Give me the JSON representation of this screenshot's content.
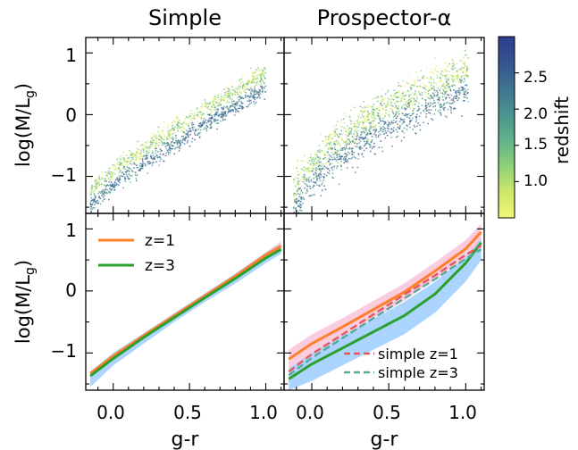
{
  "chart_data": [
    {
      "type": "scatter",
      "panel": "top-left",
      "title": "Simple",
      "xlabel": "",
      "ylabel": "log(M/L_g)",
      "xlim": [
        -0.18,
        1.12
      ],
      "ylim": [
        -1.6,
        1.25
      ],
      "yticks": [
        1,
        0,
        -1
      ],
      "color_by": "redshift",
      "density_ridge": {
        "x": [
          -0.15,
          0.0,
          0.2,
          0.4,
          0.6,
          0.8,
          0.95
        ],
        "y": [
          -1.3,
          -0.95,
          -0.62,
          -0.3,
          0.02,
          0.32,
          0.55
        ]
      }
    },
    {
      "type": "scatter",
      "panel": "top-right",
      "title": "Prospector-α",
      "xlabel": "",
      "ylabel": "",
      "xlim": [
        -0.18,
        1.12
      ],
      "ylim": [
        -1.6,
        1.25
      ],
      "color_by": "redshift",
      "density_ridge": {
        "x": [
          -0.1,
          0.1,
          0.3,
          0.5,
          0.7,
          0.9
        ],
        "y": [
          -1.15,
          -0.6,
          -0.25,
          0.05,
          0.3,
          0.55
        ]
      }
    },
    {
      "type": "line",
      "panel": "bottom-left",
      "xlabel": "g-r",
      "ylabel": "log(M/L_g)",
      "xlim": [
        -0.18,
        1.12
      ],
      "ylim": [
        -1.6,
        1.25
      ],
      "xticks": [
        0.0,
        0.5,
        1.0
      ],
      "xtick_labels": [
        "0.0",
        "0.5",
        "1.0"
      ],
      "yticks": [
        1,
        0,
        -1
      ],
      "legend": "upper-left",
      "x": [
        -0.15,
        0.0,
        0.2,
        0.4,
        0.6,
        0.8,
        1.0,
        1.1
      ],
      "series": [
        {
          "name": "z=1",
          "color": "#ff7f2a",
          "values": [
            -1.33,
            -1.05,
            -0.72,
            -0.4,
            -0.08,
            0.24,
            0.58,
            0.72
          ]
        },
        {
          "name": "z=3",
          "color": "#2ca02c",
          "values": [
            -1.37,
            -1.09,
            -0.75,
            -0.43,
            -0.11,
            0.2,
            0.53,
            0.67
          ]
        }
      ],
      "bands": [
        {
          "color": "#66b3ff",
          "lower": [
            -1.55,
            -1.2,
            -0.85,
            -0.5,
            -0.18,
            0.12,
            0.45,
            0.6
          ],
          "upper": [
            -1.3,
            -1.0,
            -0.68,
            -0.36,
            -0.04,
            0.28,
            0.62,
            0.76
          ]
        },
        {
          "color": "#f5a3c7",
          "lower": [
            -1.34,
            -1.06,
            -0.73,
            -0.41,
            -0.09,
            0.23,
            0.56,
            0.7
          ],
          "upper": [
            -1.3,
            -1.02,
            -0.69,
            -0.37,
            -0.05,
            0.27,
            0.62,
            0.8
          ]
        }
      ]
    },
    {
      "type": "line",
      "panel": "bottom-right",
      "xlabel": "g-r",
      "ylabel": "",
      "xlim": [
        -0.18,
        1.12
      ],
      "ylim": [
        -1.6,
        1.25
      ],
      "xticks": [
        0.0,
        0.5,
        1.0
      ],
      "xtick_labels": [
        "0.0",
        "0.5",
        "1.0"
      ],
      "legend": "lower-right",
      "x": [
        -0.15,
        0.0,
        0.2,
        0.4,
        0.6,
        0.8,
        1.0,
        1.1
      ],
      "series": [
        {
          "name": "",
          "color": "#ff7f2a",
          "dashed": false,
          "values": [
            -1.1,
            -0.85,
            -0.58,
            -0.3,
            -0.02,
            0.32,
            0.68,
            0.95
          ]
        },
        {
          "name": "",
          "color": "#2ca02c",
          "dashed": false,
          "values": [
            -1.42,
            -1.18,
            -0.92,
            -0.66,
            -0.4,
            -0.05,
            0.45,
            0.78
          ]
        },
        {
          "name": "simple z=1",
          "color": "#e8555a",
          "dashed": true,
          "values": [
            -1.3,
            -1.02,
            -0.7,
            -0.38,
            -0.06,
            0.25,
            0.58,
            0.73
          ]
        },
        {
          "name": "simple z=3",
          "color": "#5aa898",
          "dashed": true,
          "values": [
            -1.36,
            -1.08,
            -0.76,
            -0.44,
            -0.12,
            0.19,
            0.52,
            0.67
          ]
        }
      ],
      "bands": [
        {
          "color": "#66b3ff",
          "lower": [
            -1.6,
            -1.45,
            -1.2,
            -0.95,
            -0.7,
            -0.35,
            0.15,
            0.5
          ],
          "upper": [
            -1.25,
            -1.0,
            -0.72,
            -0.45,
            -0.18,
            0.15,
            0.55,
            0.85
          ]
        },
        {
          "color": "#f5a3c7",
          "lower": [
            -1.25,
            -1.0,
            -0.72,
            -0.44,
            -0.16,
            0.18,
            0.55,
            0.82
          ],
          "upper": [
            -0.95,
            -0.7,
            -0.44,
            -0.16,
            0.12,
            0.46,
            0.82,
            1.08
          ]
        }
      ]
    }
  ],
  "colorbar": {
    "label": "redshift",
    "ticks": [
      2.5,
      2.0,
      1.5,
      1.0
    ],
    "tick_labels": [
      "2.5",
      "2.0",
      "1.5",
      "1.0"
    ],
    "range": [
      0.5,
      3.0
    ],
    "colors": [
      "#f2f576",
      "#cde86a",
      "#8fd07a",
      "#5fb38a",
      "#4a9490",
      "#3f7390",
      "#365490",
      "#2c3e8f"
    ]
  },
  "text": {
    "title_left": "Simple",
    "title_right": "Prospector-α",
    "ylabel": "log(M/L",
    "ylabel_sub": "g",
    "xlabel": "g-r",
    "ytick_labels": [
      "1",
      "0",
      "−1"
    ],
    "xtick_labels": [
      "0.0",
      "0.5",
      "1.0"
    ],
    "legend_left": [
      "z=1",
      "z=3"
    ],
    "legend_right": [
      "simple z=1",
      "simple z=3"
    ],
    "colorbar_label": "redshift"
  }
}
